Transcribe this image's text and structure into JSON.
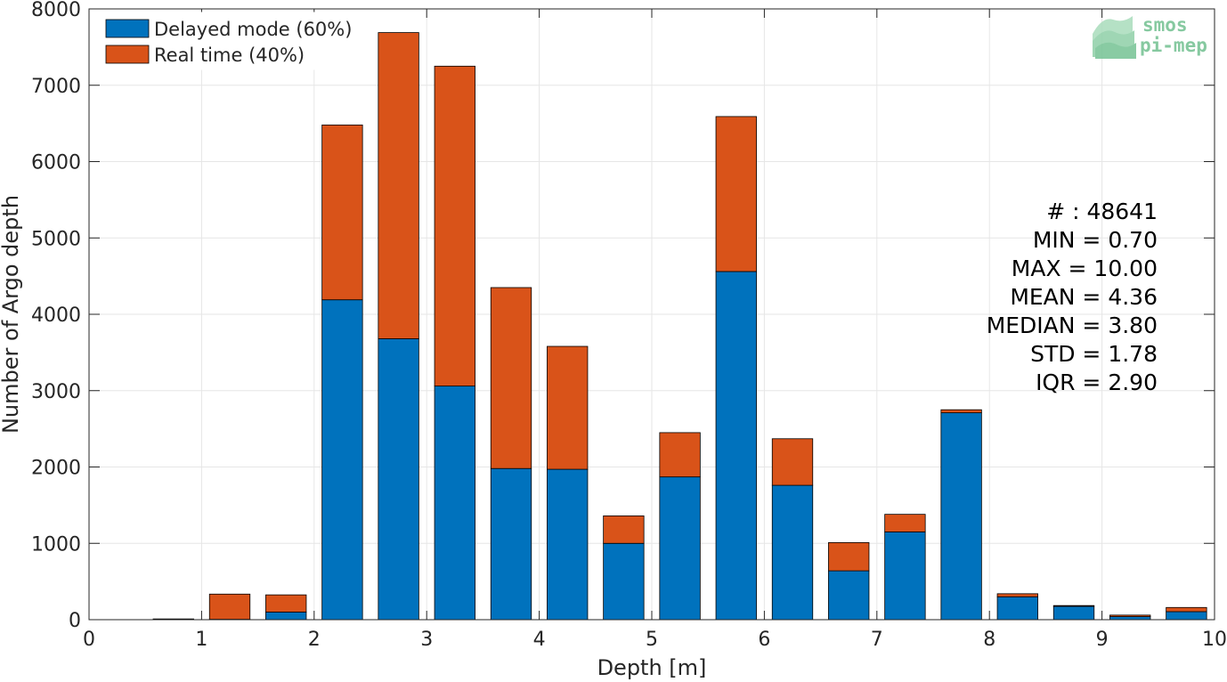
{
  "chart_data": {
    "type": "bar",
    "stacked": true,
    "xlabel": "Depth [m]",
    "ylabel": "Number of Argo depth",
    "xlim": [
      0,
      10
    ],
    "ylim": [
      0,
      8000
    ],
    "xticks": [
      "0",
      "1",
      "2",
      "3",
      "4",
      "5",
      "6",
      "7",
      "8",
      "9",
      "10"
    ],
    "yticks": [
      "0",
      "1000",
      "2000",
      "3000",
      "4000",
      "5000",
      "6000",
      "7000",
      "8000"
    ],
    "grid": true,
    "legend_position": "top-left",
    "bin_width": 0.5,
    "bin_centers": [
      0.75,
      1.25,
      1.75,
      2.25,
      2.75,
      3.25,
      3.75,
      4.25,
      4.75,
      5.25,
      5.75,
      6.25,
      6.75,
      7.25,
      7.75,
      8.25,
      8.75,
      9.25,
      9.75
    ],
    "series": [
      {
        "name": "Delayed mode (60%)",
        "color": "#0072bd",
        "values": [
          5,
          5,
          100,
          4190,
          3680,
          3060,
          1980,
          1970,
          1000,
          1870,
          4560,
          1760,
          640,
          1150,
          2710,
          300,
          175,
          40,
          105
        ]
      },
      {
        "name": "Real time (40%)",
        "color": "#d95319",
        "values": [
          5,
          330,
          225,
          2290,
          4010,
          4190,
          2370,
          1610,
          360,
          580,
          2030,
          610,
          370,
          230,
          40,
          40,
          10,
          20,
          55
        ]
      }
    ],
    "stats": [
      "# : 48641",
      "MIN = 0.70",
      "MAX =  10.00",
      "MEAN = 4.36",
      "MEDIAN = 3.80",
      "STD = 1.78",
      "IQR = 2.90"
    ]
  },
  "logo": {
    "line1": "smos",
    "line2": "pi-mep",
    "color": "#86c9a0"
  }
}
